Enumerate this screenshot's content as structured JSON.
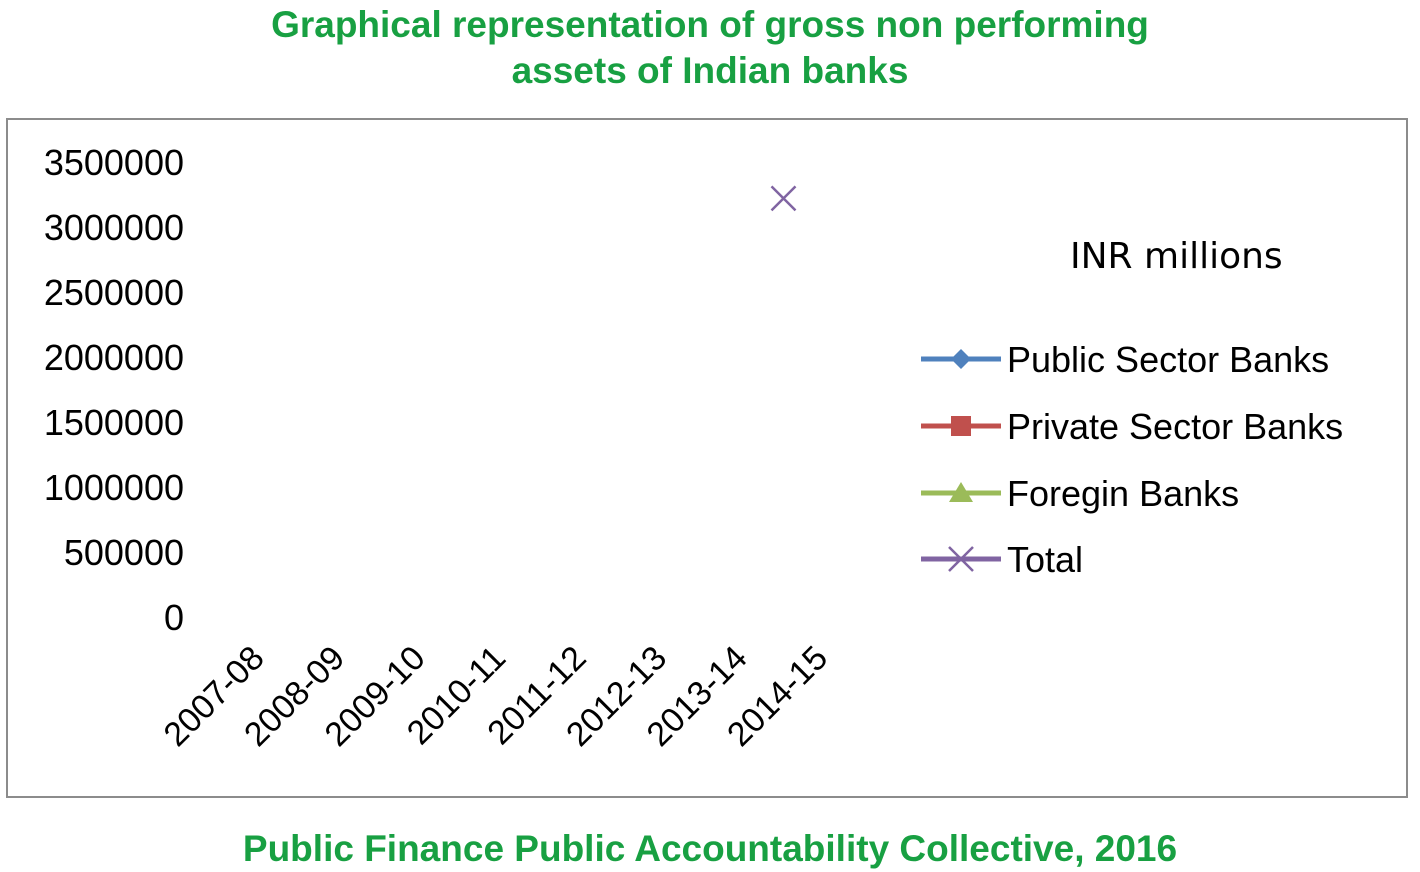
{
  "header": {
    "title_line1": "Graphical representation of gross non performing",
    "title_line2": "assets of Indian banks"
  },
  "footer": {
    "text": "Public Finance Public Accountability Collective, 2016"
  },
  "colors": {
    "title": "#18a042",
    "frame": "#8c8c8c"
  },
  "chart_data": {
    "type": "line",
    "title": "Graphical representation of gross non performing assets of Indian banks",
    "unit_label": "INR millions",
    "xlabel": "",
    "ylabel": "",
    "categories": [
      "2007-08",
      "2008-09",
      "2009-10",
      "2010-11",
      "2011-12",
      "2012-13",
      "2013-14",
      "2014-15"
    ],
    "yticks": [
      "0",
      "500000",
      "1000000",
      "1500000",
      "2000000",
      "2500000",
      "3000000",
      "3500000"
    ],
    "ylim": [
      0,
      3500000
    ],
    "grid": false,
    "legend_position": "right",
    "series": [
      {
        "name": "Public Sector Banks",
        "color": "#4f81bd",
        "marker": "diamond",
        "values": [
          null,
          null,
          null,
          null,
          null,
          null,
          null,
          null
        ]
      },
      {
        "name": "Private Sector Banks",
        "color": "#c0504d",
        "marker": "square",
        "values": [
          null,
          null,
          null,
          null,
          null,
          null,
          null,
          null
        ]
      },
      {
        "name": "Foregin Banks",
        "color": "#9bbb59",
        "marker": "triangle",
        "values": [
          null,
          null,
          null,
          null,
          null,
          null,
          null,
          null
        ]
      },
      {
        "name": "Total",
        "color": "#8064a2",
        "marker": "x",
        "values": [
          null,
          null,
          null,
          null,
          null,
          null,
          null,
          3220000
        ]
      }
    ]
  }
}
